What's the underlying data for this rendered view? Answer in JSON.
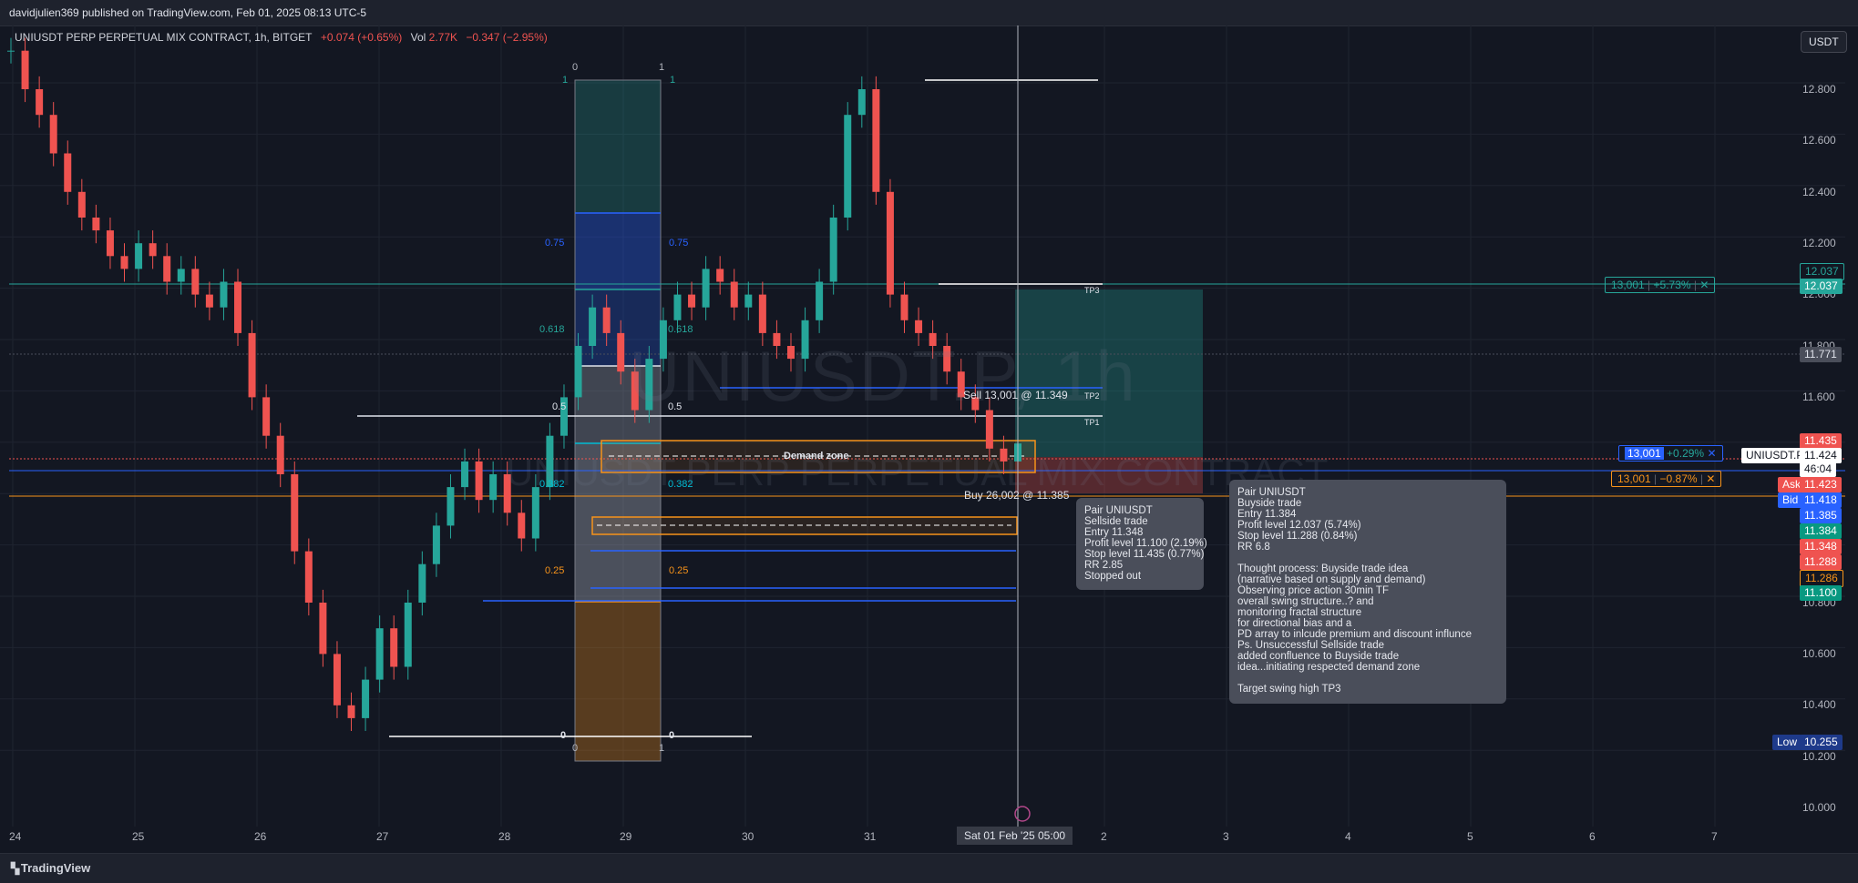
{
  "header": {
    "publisher": "davidjulien369 published on TradingView.com, Feb 01, 2025 08:13 UTC-5"
  },
  "legend": {
    "symbol": "UNIUSDT PERP PERPETUAL MIX CONTRACT, 1h, BITGET",
    "change": "+0.074 (+0.65%)",
    "vol_label": "Vol",
    "vol_value": "2.77K",
    "vol_change": "−0.347 (−2.95%)"
  },
  "currency_button": "USDT",
  "watermark": {
    "main": "UNIUSDT.P, 1h",
    "sub": "UNIUSDT PERP PERPETUAL MIX CONTRACT"
  },
  "price_axis": [
    "12.800",
    "12.600",
    "12.400",
    "12.200",
    "12.000",
    "11.800",
    "11.600",
    "10.800",
    "10.600",
    "10.400",
    "10.200",
    "10.000"
  ],
  "price_tags": [
    {
      "text": "12.037",
      "style": "outline-green"
    },
    {
      "text": "12.037",
      "style": "green"
    },
    {
      "text": "11.771",
      "style": "gray"
    },
    {
      "text": "11.435",
      "style": "red"
    },
    {
      "text": "11.424",
      "style": "white"
    },
    {
      "text": "46:04",
      "style": "white"
    },
    {
      "text": "11.423",
      "style": "red"
    },
    {
      "text": "11.418",
      "style": "blue"
    },
    {
      "text": "11.385",
      "style": "blue"
    },
    {
      "text": "11.384",
      "style": "green"
    },
    {
      "text": "11.348",
      "style": "red"
    },
    {
      "text": "11.288",
      "style": "red"
    },
    {
      "text": "11.286",
      "style": "outline-orange"
    },
    {
      "text": "11.100",
      "style": "green"
    },
    {
      "text": "10.255",
      "style": "navy"
    }
  ],
  "axis_badges": {
    "ask": "Ask",
    "bid": "Bid",
    "low": "Low",
    "symbol": "UNIUSDT.P"
  },
  "time_axis": [
    "24",
    "25",
    "26",
    "27",
    "28",
    "29",
    "30",
    "31",
    "2",
    "3",
    "4",
    "5",
    "6",
    "7"
  ],
  "crosshair_time": "Sat 01 Feb '25   05:00",
  "positions": [
    {
      "qty": "13,001",
      "pnl": "+5.73%",
      "close": "✕",
      "color": "#26a69a"
    },
    {
      "qty": "13,001",
      "pnl": "+0.29%",
      "close": "✕",
      "color": "#2962ff"
    },
    {
      "qty": "13,001",
      "pnl": "−0.87%",
      "close": "✕",
      "color": "#f7931a"
    }
  ],
  "fib_labels": {
    "top0": "0",
    "top1": "1",
    "one": "1",
    "bottom0": "0",
    "bottom1": "1",
    "l075": "0.75",
    "l0618": "0.618",
    "l05": "0.5",
    "l0382": "0.382",
    "l025": "0.25",
    "l0": "0"
  },
  "zone_label": "Demand zone",
  "tp_labels": {
    "tp1": "TP1",
    "tp2": "TP2",
    "tp3": "TP3"
  },
  "trade_labels": {
    "sell": "Sell 13,001 @ 11.349",
    "buy": "Buy 26,002 @ 11.385"
  },
  "notes": {
    "sell": "Pair UNIUSDT\nSellside trade\nEntry 11.348\nProfit level 11.100 (2.19%)\nStop level 11.435 (0.77%)\nRR 2.85\nStopped out",
    "buy": "Pair UNIUSDT\nBuyside trade\nEntry 11.384\nProfit level 12.037 (5.74%)\nStop level 11.288 (0.84%)\nRR 6.8\n\nThought process: Buyside trade idea\n(narrative based on supply and demand)\nObserving price action 30min TF\noverall swing structure..? and\nmonitoring fractal structure\nfor directional bias and a\nPD array to inlcude premium and discount influnce\nPs. Unsuccessful Sellside trade\nadded confluence to Buyside trade\nidea...initiating respected demand zone\n\nTarget swing high TP3"
  },
  "footer": {
    "brand": "TradingView"
  },
  "colors": {
    "bg": "#131722",
    "up": "#26a69a",
    "down": "#ef5350",
    "fib_blue": "#2962ff",
    "orange": "#f7931a"
  },
  "chart_data": {
    "type": "candlestick",
    "timeframe": "1h",
    "ylim": [
      9.95,
      12.95
    ],
    "x_ticks": [
      "24",
      "25",
      "26",
      "27",
      "28",
      "29",
      "30",
      "31",
      "2",
      "3",
      "4",
      "5",
      "6",
      "7"
    ],
    "series": [
      {
        "name": "UNIUSDT",
        "values": [
          12.95,
          12.8,
          12.7,
          12.55,
          12.4,
          12.3,
          12.25,
          12.15,
          12.1,
          12.2,
          12.15,
          12.05,
          12.1,
          12.0,
          11.95,
          12.05,
          11.85,
          11.6,
          11.45,
          11.3,
          11.0,
          10.8,
          10.6,
          10.4,
          10.35,
          10.5,
          10.7,
          10.55,
          10.8,
          10.95,
          11.1,
          11.25,
          11.35,
          11.2,
          11.3,
          11.15,
          11.05,
          11.25,
          11.45,
          11.6,
          11.8,
          11.95,
          11.85,
          11.7,
          11.55,
          11.75,
          11.9,
          12.0,
          11.95,
          12.1,
          12.05,
          11.95,
          12.0,
          11.85,
          11.8,
          11.75,
          11.9,
          12.05,
          12.3,
          12.7,
          12.8,
          12.4,
          12.0,
          11.9,
          11.85,
          11.8,
          11.7,
          11.6,
          11.55,
          11.4,
          11.35,
          11.42
        ]
      }
    ],
    "levels": {
      "swing_high": 12.83,
      "low": 10.255,
      "tp3": 12.037,
      "tp2": 11.62,
      "tp1": 11.53,
      "entry_buy": 11.384,
      "stop_buy": 11.288,
      "entry_sell": 11.348
    }
  }
}
